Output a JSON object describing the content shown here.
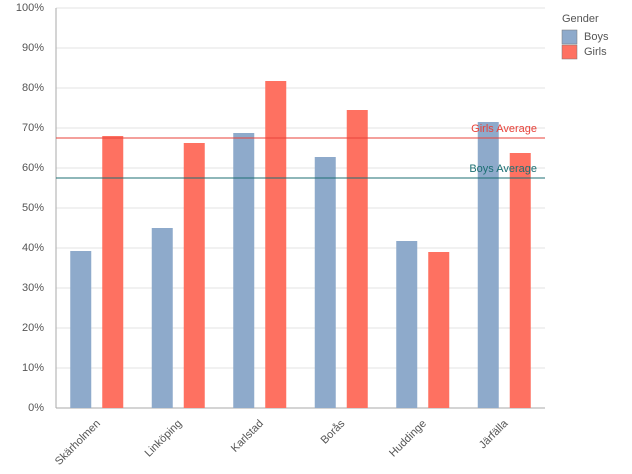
{
  "chart_data": {
    "type": "bar",
    "categories": [
      "Skärholmen",
      "Linköping",
      "Karlstad",
      "Borås",
      "Huddinge",
      "Järfälla"
    ],
    "series": [
      {
        "name": "Boys",
        "color": "#8eaacb",
        "values": [
          39.25,
          45,
          68.75,
          62.75,
          41.75,
          71.5
        ]
      },
      {
        "name": "Girls",
        "color": "#fe7161",
        "values": [
          68,
          66.25,
          81.75,
          74.5,
          39,
          63.75
        ]
      }
    ],
    "ylim": [
      0,
      100
    ],
    "yticks": [
      {
        "value": 0,
        "label": "0%"
      },
      {
        "value": 10,
        "label": "10%"
      },
      {
        "value": 20,
        "label": "20%"
      },
      {
        "value": 30,
        "label": "30%"
      },
      {
        "value": 40,
        "label": "40%"
      },
      {
        "value": 50,
        "label": "50%"
      },
      {
        "value": 60,
        "label": "60%"
      },
      {
        "value": 70,
        "label": "70%"
      },
      {
        "value": 80,
        "label": "80%"
      },
      {
        "value": 90,
        "label": "90%"
      },
      {
        "value": 100,
        "label": "100%"
      }
    ],
    "grid": true,
    "legend_title": "Gender",
    "legend_position": "right",
    "reference_lines": [
      {
        "label": "Girls Average",
        "value": 67.5,
        "color": "#e8423a"
      },
      {
        "label": "Boys Average",
        "value": 57.5,
        "color": "#1c6f73"
      }
    ]
  }
}
